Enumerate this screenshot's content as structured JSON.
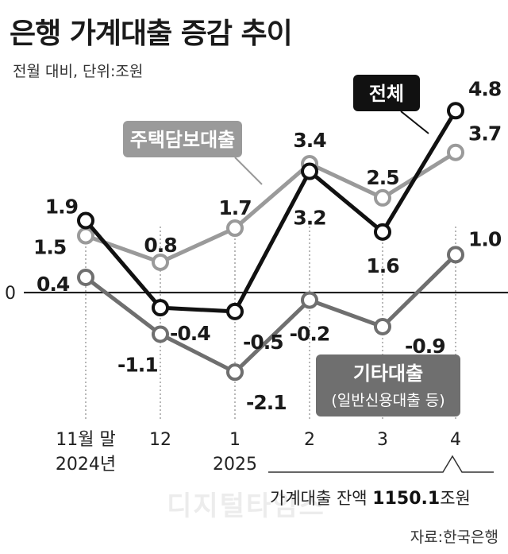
{
  "title": "은행 가계대출 증감 추이",
  "subtitle": "전월 대비, 단위:조원",
  "source": "자료:한국은행",
  "watermark": "디지털타임스",
  "balance_note": {
    "prefix": "가계대출 잔액 ",
    "value": "1150.1",
    "unit": "조원"
  },
  "chart_data": {
    "type": "line",
    "categories": [
      "11월 말",
      "12",
      "1",
      "2",
      "3",
      "4"
    ],
    "year_labels": [
      {
        "index": 0,
        "text": "2024년"
      },
      {
        "index": 2,
        "text": "2025"
      }
    ],
    "ylim": [
      -2.6,
      5.1
    ],
    "zero_label": "0",
    "series": [
      {
        "key": "total",
        "name": "전체",
        "color": "#111111",
        "values": [
          1.9,
          -0.4,
          -0.5,
          3.2,
          1.6,
          4.8
        ],
        "labels": [
          "1.9",
          "-0.4",
          "-0.5",
          "3.2",
          "1.6",
          "4.8"
        ]
      },
      {
        "key": "mortgage",
        "name": "주택담보대출",
        "color": "#9a9a9a",
        "values": [
          1.5,
          0.8,
          1.7,
          3.4,
          2.5,
          3.7
        ],
        "labels": [
          "1.5",
          "0.8",
          "1.7",
          "3.4",
          "2.5",
          "3.7"
        ]
      },
      {
        "key": "other",
        "name": "기타대출",
        "sublabel": "(일반신용대출 등)",
        "color": "#6f6f6f",
        "values": [
          0.4,
          -1.1,
          -2.1,
          -0.2,
          -0.9,
          1.0
        ],
        "labels": [
          "0.4",
          "-1.1",
          "-2.1",
          "-0.2",
          "-0.9",
          "1.0"
        ]
      }
    ]
  }
}
